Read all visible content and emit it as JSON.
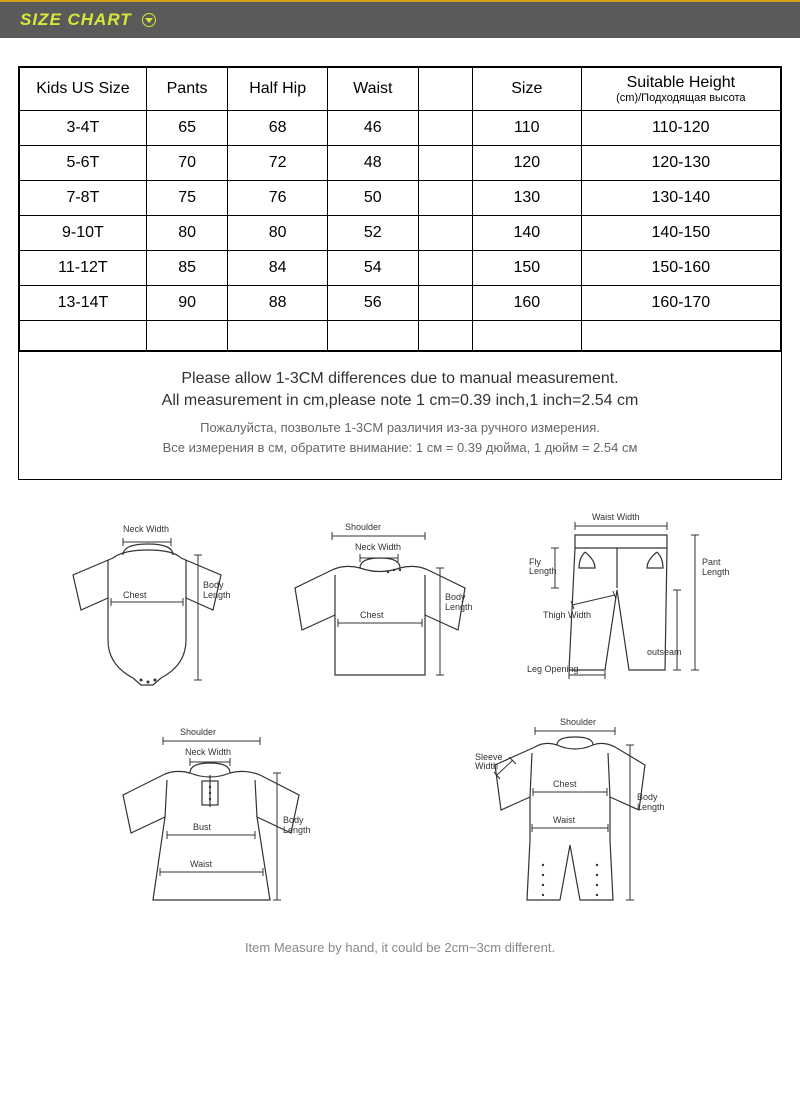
{
  "header": {
    "title": "SIZE CHART"
  },
  "table": {
    "columns": [
      "Kids US Size",
      "Pants",
      "Half Hip",
      "Waist",
      "",
      "Size"
    ],
    "suitable_header": "Suitable Height",
    "suitable_sub": "(cm)/Подходящая высота",
    "rows": [
      [
        "3-4T",
        "65",
        "68",
        "46",
        "",
        "110",
        "110-120"
      ],
      [
        "5-6T",
        "70",
        "72",
        "48",
        "",
        "120",
        "120-130"
      ],
      [
        "7-8T",
        "75",
        "76",
        "50",
        "",
        "130",
        "130-140"
      ],
      [
        "9-10T",
        "80",
        "80",
        "52",
        "",
        "140",
        "140-150"
      ],
      [
        "11-12T",
        "85",
        "84",
        "54",
        "",
        "150",
        "150-160"
      ],
      [
        "13-14T",
        "90",
        "88",
        "56",
        "",
        "160",
        "160-170"
      ]
    ]
  },
  "notes": {
    "en1": "Please allow 1-3CM differences due to manual measurement.",
    "en2": "All measurement in cm,please note 1 cm=0.39 inch,1 inch=2.54 cm",
    "ru1": "Пожалуйста, позвольте 1-3СМ различия из-за ручного измерения.",
    "ru2": "Все измерения в см, обратите внимание: 1 см = 0.39 дюйма, 1 дюйм = 2.54 см"
  },
  "diagrams": {
    "labels": {
      "neck_width": "Neck Width",
      "shoulder": "Shoulder",
      "chest": "Chest",
      "body_length": "Body\nLength",
      "waist_width": "Waist Width",
      "fly_length": "Fly\nLength",
      "pant_length": "Pant\nLength",
      "thigh_width": "Thigh Width",
      "outseam": "outseam",
      "leg_opening": "Leg Opening",
      "sleeve_width": "Sleeve\nWidth",
      "bust": "Bust",
      "waist": "Waist"
    },
    "footer": "Item Measure by hand, it could be 2cm~3cm different."
  },
  "colors": {
    "header_bg": "#5a5a5a",
    "header_text": "#d8e838",
    "accent_border": "#d4a017",
    "body_bg": "#ffffff",
    "text": "#333333",
    "muted": "#888888",
    "border": "#000000"
  }
}
